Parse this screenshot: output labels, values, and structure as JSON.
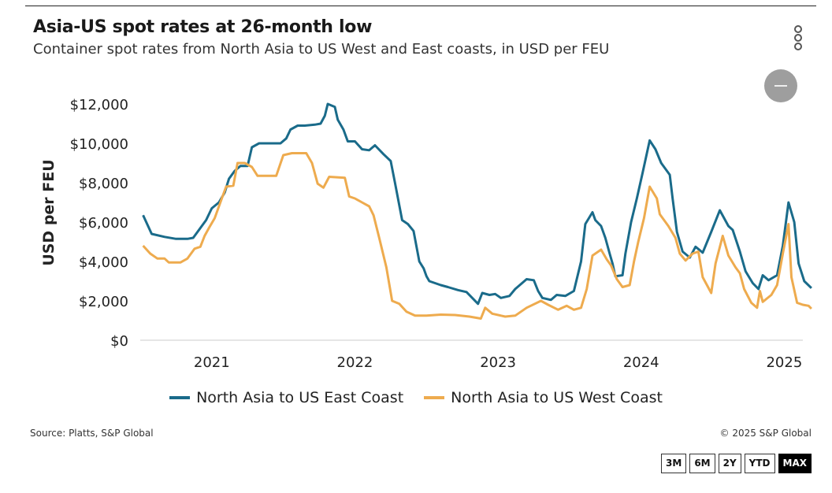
{
  "header": {
    "title": "Asia-US spot rates at 26-month low",
    "subtitle": "Container spot rates from North Asia to US West and East coasts, in USD per FEU",
    "menu_icon": "kebab-menu-icon",
    "zoom_out_icon": "minus-circle-icon"
  },
  "colors": {
    "east": "#1a6b8a",
    "west": "#eeab4e",
    "axis": "#cccccc",
    "active_range_bg": "#000000"
  },
  "footer": {
    "source": "Source: Platts, S&P Global",
    "copyright": "© 2025 S&P Global"
  },
  "range_buttons": [
    {
      "label": "3M",
      "active": false
    },
    {
      "label": "6M",
      "active": false
    },
    {
      "label": "2Y",
      "active": false
    },
    {
      "label": "YTD",
      "active": false
    },
    {
      "label": "MAX",
      "active": true
    }
  ],
  "chart_data": {
    "type": "line",
    "title": "Asia-US spot rates at 26-month low",
    "subtitle": "Container spot rates from North Asia to US West and East coasts, in USD per FEU",
    "xlabel": "",
    "ylabel": "USD per FEU",
    "xlim": [
      2020.5,
      2025.13
    ],
    "ylim": [
      0,
      12000
    ],
    "x_ticks": [
      2021,
      2022,
      2023,
      2024,
      2025
    ],
    "x_tick_labels": [
      "2021",
      "2022",
      "2023",
      "2024",
      "2025"
    ],
    "y_ticks": [
      0,
      2000,
      4000,
      6000,
      8000,
      10000,
      12000
    ],
    "y_tick_labels": [
      "$0",
      "$2,000",
      "$4,000",
      "$6,000",
      "$8,000",
      "$10,000",
      "$12,000"
    ],
    "grid": false,
    "legend": "bottom-center",
    "series": [
      {
        "name": "North Asia to US East Coast",
        "color": "#1a6b8a",
        "points": [
          [
            2020.52,
            6350
          ],
          [
            2020.58,
            5400
          ],
          [
            2020.67,
            5250
          ],
          [
            2020.75,
            5150
          ],
          [
            2020.83,
            5150
          ],
          [
            2020.87,
            5200
          ],
          [
            2020.92,
            5700
          ],
          [
            2020.96,
            6100
          ],
          [
            2021.0,
            6700
          ],
          [
            2021.05,
            7000
          ],
          [
            2021.09,
            7500
          ],
          [
            2021.12,
            8200
          ],
          [
            2021.16,
            8600
          ],
          [
            2021.2,
            8850
          ],
          [
            2021.25,
            8850
          ],
          [
            2021.28,
            9800
          ],
          [
            2021.33,
            10000
          ],
          [
            2021.4,
            10000
          ],
          [
            2021.48,
            10000
          ],
          [
            2021.52,
            10250
          ],
          [
            2021.55,
            10700
          ],
          [
            2021.6,
            10900
          ],
          [
            2021.65,
            10900
          ],
          [
            2021.72,
            10950
          ],
          [
            2021.76,
            11000
          ],
          [
            2021.79,
            11400
          ],
          [
            2021.81,
            12000
          ],
          [
            2021.86,
            11850
          ],
          [
            2021.88,
            11200
          ],
          [
            2021.92,
            10700
          ],
          [
            2021.95,
            10100
          ],
          [
            2022.0,
            10100
          ],
          [
            2022.05,
            9700
          ],
          [
            2022.1,
            9650
          ],
          [
            2022.14,
            9900
          ],
          [
            2022.2,
            9450
          ],
          [
            2022.25,
            9100
          ],
          [
            2022.28,
            8000
          ],
          [
            2022.33,
            6100
          ],
          [
            2022.37,
            5900
          ],
          [
            2022.41,
            5550
          ],
          [
            2022.45,
            4000
          ],
          [
            2022.48,
            3650
          ],
          [
            2022.5,
            3250
          ],
          [
            2022.52,
            3000
          ],
          [
            2022.6,
            2800
          ],
          [
            2022.65,
            2700
          ],
          [
            2022.72,
            2550
          ],
          [
            2022.78,
            2450
          ],
          [
            2022.86,
            1850
          ],
          [
            2022.89,
            2400
          ],
          [
            2022.94,
            2300
          ],
          [
            2022.98,
            2350
          ],
          [
            2023.02,
            2150
          ],
          [
            2023.08,
            2250
          ],
          [
            2023.12,
            2600
          ],
          [
            2023.2,
            3100
          ],
          [
            2023.25,
            3050
          ],
          [
            2023.28,
            2500
          ],
          [
            2023.31,
            2150
          ],
          [
            2023.37,
            2050
          ],
          [
            2023.41,
            2300
          ],
          [
            2023.47,
            2250
          ],
          [
            2023.53,
            2500
          ],
          [
            2023.58,
            4000
          ],
          [
            2023.61,
            5900
          ],
          [
            2023.66,
            6500
          ],
          [
            2023.68,
            6100
          ],
          [
            2023.72,
            5800
          ],
          [
            2023.75,
            5200
          ],
          [
            2023.78,
            4400
          ],
          [
            2023.8,
            3900
          ],
          [
            2023.82,
            3250
          ],
          [
            2023.87,
            3300
          ],
          [
            2023.89,
            4400
          ],
          [
            2023.93,
            6000
          ],
          [
            2023.97,
            7200
          ],
          [
            2024.01,
            8500
          ],
          [
            2024.06,
            10150
          ],
          [
            2024.1,
            9700
          ],
          [
            2024.14,
            9000
          ],
          [
            2024.2,
            8400
          ],
          [
            2024.22,
            7200
          ],
          [
            2024.25,
            5500
          ],
          [
            2024.29,
            4500
          ],
          [
            2024.34,
            4200
          ],
          [
            2024.38,
            4750
          ],
          [
            2024.43,
            4450
          ],
          [
            2024.49,
            5500
          ],
          [
            2024.55,
            6600
          ],
          [
            2024.61,
            5800
          ],
          [
            2024.64,
            5600
          ],
          [
            2024.69,
            4500
          ],
          [
            2024.73,
            3500
          ],
          [
            2024.78,
            2900
          ],
          [
            2024.82,
            2600
          ],
          [
            2024.85,
            3300
          ],
          [
            2024.89,
            3050
          ],
          [
            2024.95,
            3300
          ],
          [
            2024.99,
            4800
          ],
          [
            2025.03,
            7000
          ],
          [
            2025.07,
            6000
          ],
          [
            2025.1,
            3900
          ],
          [
            2025.14,
            3000
          ],
          [
            2025.19,
            2650
          ]
        ]
      },
      {
        "name": "North Asia to US West Coast",
        "color": "#eeab4e",
        "points": [
          [
            2020.52,
            4800
          ],
          [
            2020.57,
            4400
          ],
          [
            2020.62,
            4150
          ],
          [
            2020.67,
            4150
          ],
          [
            2020.7,
            3950
          ],
          [
            2020.78,
            3950
          ],
          [
            2020.83,
            4150
          ],
          [
            2020.88,
            4650
          ],
          [
            2020.92,
            4750
          ],
          [
            2020.95,
            5300
          ],
          [
            2020.98,
            5700
          ],
          [
            2021.02,
            6200
          ],
          [
            2021.07,
            7200
          ],
          [
            2021.1,
            7800
          ],
          [
            2021.15,
            7850
          ],
          [
            2021.18,
            9000
          ],
          [
            2021.23,
            9000
          ],
          [
            2021.28,
            8800
          ],
          [
            2021.32,
            8350
          ],
          [
            2021.4,
            8350
          ],
          [
            2021.45,
            8350
          ],
          [
            2021.5,
            9400
          ],
          [
            2021.56,
            9500
          ],
          [
            2021.66,
            9500
          ],
          [
            2021.7,
            9000
          ],
          [
            2021.74,
            7950
          ],
          [
            2021.78,
            7750
          ],
          [
            2021.82,
            8300
          ],
          [
            2021.93,
            8250
          ],
          [
            2021.96,
            7300
          ],
          [
            2022.0,
            7200
          ],
          [
            2022.05,
            7000
          ],
          [
            2022.1,
            6800
          ],
          [
            2022.13,
            6350
          ],
          [
            2022.17,
            5200
          ],
          [
            2022.22,
            3700
          ],
          [
            2022.26,
            2000
          ],
          [
            2022.31,
            1850
          ],
          [
            2022.36,
            1450
          ],
          [
            2022.42,
            1250
          ],
          [
            2022.5,
            1250
          ],
          [
            2022.6,
            1300
          ],
          [
            2022.7,
            1280
          ],
          [
            2022.8,
            1200
          ],
          [
            2022.88,
            1100
          ],
          [
            2022.91,
            1650
          ],
          [
            2022.96,
            1350
          ],
          [
            2023.05,
            1200
          ],
          [
            2023.12,
            1250
          ],
          [
            2023.2,
            1650
          ],
          [
            2023.3,
            2000
          ],
          [
            2023.35,
            1800
          ],
          [
            2023.42,
            1550
          ],
          [
            2023.48,
            1750
          ],
          [
            2023.53,
            1550
          ],
          [
            2023.58,
            1650
          ],
          [
            2023.62,
            2600
          ],
          [
            2023.66,
            4300
          ],
          [
            2023.72,
            4600
          ],
          [
            2023.76,
            4100
          ],
          [
            2023.79,
            3800
          ],
          [
            2023.83,
            3100
          ],
          [
            2023.87,
            2700
          ],
          [
            2023.92,
            2800
          ],
          [
            2023.95,
            4000
          ],
          [
            2023.98,
            5000
          ],
          [
            2024.02,
            6200
          ],
          [
            2024.06,
            7800
          ],
          [
            2024.11,
            7200
          ],
          [
            2024.13,
            6400
          ],
          [
            2024.19,
            5800
          ],
          [
            2024.24,
            5200
          ],
          [
            2024.27,
            4400
          ],
          [
            2024.31,
            4050
          ],
          [
            2024.36,
            4400
          ],
          [
            2024.4,
            4500
          ],
          [
            2024.43,
            3200
          ],
          [
            2024.46,
            2800
          ],
          [
            2024.49,
            2400
          ],
          [
            2024.52,
            3900
          ],
          [
            2024.57,
            5300
          ],
          [
            2024.61,
            4300
          ],
          [
            2024.66,
            3700
          ],
          [
            2024.69,
            3400
          ],
          [
            2024.72,
            2600
          ],
          [
            2024.77,
            1900
          ],
          [
            2024.81,
            1650
          ],
          [
            2024.83,
            2500
          ],
          [
            2024.85,
            1950
          ],
          [
            2024.91,
            2300
          ],
          [
            2024.95,
            2800
          ],
          [
            2024.99,
            4400
          ],
          [
            2025.03,
            5900
          ],
          [
            2025.05,
            3200
          ],
          [
            2025.09,
            1900
          ],
          [
            2025.13,
            1800
          ],
          [
            2025.17,
            1750
          ],
          [
            2025.19,
            1600
          ]
        ]
      }
    ]
  }
}
